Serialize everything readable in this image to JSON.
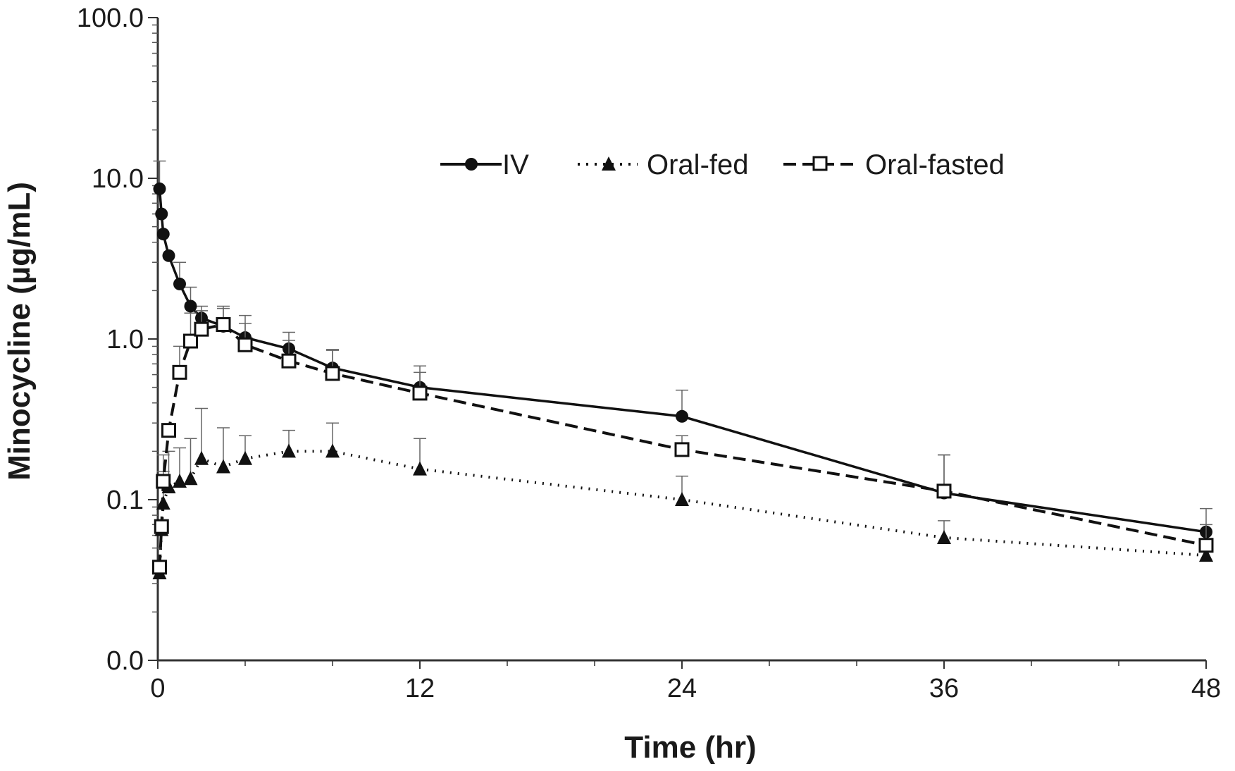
{
  "chart_data": {
    "type": "line",
    "xlabel": "Time (hr)",
    "ylabel": "Minocycline (µg/mL)",
    "x_ticks": [
      0,
      12,
      24,
      36,
      48
    ],
    "x_tick_labels": [
      "0",
      "12",
      "24",
      "36",
      "48"
    ],
    "y_scale": "log",
    "y_ticks": [
      0.01,
      0.1,
      1.0,
      10.0,
      100.0
    ],
    "y_tick_labels": [
      "0.0",
      "0.1",
      "1.0",
      "10.0",
      "100.0"
    ],
    "xlim": [
      0,
      48
    ],
    "ylim": [
      0.01,
      100
    ],
    "grid": false,
    "legend_position": "top-center",
    "series": [
      {
        "name": "IV",
        "marker": "filled-circle",
        "line": "solid",
        "x": [
          0.08,
          0.17,
          0.25,
          0.5,
          1,
          1.5,
          2,
          3,
          4,
          6,
          8,
          12,
          24,
          36,
          48
        ],
        "y": [
          8.6,
          6.0,
          4.5,
          3.3,
          2.2,
          1.6,
          1.35,
          1.2,
          1.02,
          0.87,
          0.66,
          0.5,
          0.33,
          0.11,
          0.063
        ],
        "error_upper": [
          12.8,
          null,
          null,
          null,
          3.0,
          2.1,
          1.6,
          1.6,
          1.4,
          1.1,
          0.86,
          0.68,
          0.48,
          0.19,
          0.088
        ]
      },
      {
        "name": "Oral-fed",
        "marker": "filled-triangle",
        "line": "dotted",
        "x": [
          0.08,
          0.17,
          0.25,
          0.5,
          1,
          1.5,
          2,
          3,
          4,
          6,
          8,
          12,
          24,
          36,
          48
        ],
        "y": [
          0.035,
          0.065,
          0.095,
          0.12,
          0.13,
          0.135,
          0.18,
          0.16,
          0.18,
          0.2,
          0.2,
          0.155,
          0.1,
          0.058,
          0.045
        ],
        "error_upper": [
          null,
          null,
          0.15,
          0.2,
          0.21,
          0.24,
          0.37,
          0.28,
          0.25,
          0.27,
          0.3,
          0.24,
          0.14,
          0.074,
          0.056
        ]
      },
      {
        "name": "Oral-fasted",
        "marker": "open-square",
        "line": "dashed",
        "x": [
          0.08,
          0.17,
          0.25,
          0.5,
          1,
          1.5,
          2,
          3,
          4,
          6,
          8,
          12,
          24,
          36,
          48
        ],
        "y": [
          0.038,
          0.068,
          0.13,
          0.27,
          0.62,
          0.97,
          1.15,
          1.23,
          0.92,
          0.73,
          0.61,
          0.46,
          0.205,
          0.113,
          0.052
        ],
        "error_upper": [
          null,
          null,
          0.19,
          null,
          0.9,
          1.45,
          1.5,
          1.55,
          1.25,
          0.98,
          0.85,
          0.62,
          0.25,
          0.19,
          0.07
        ]
      }
    ]
  }
}
